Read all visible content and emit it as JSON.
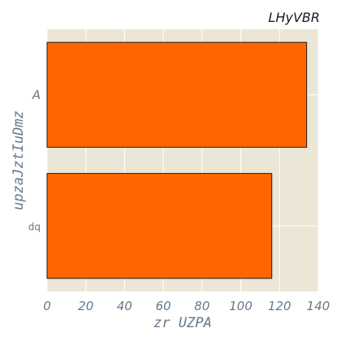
{
  "chart_data": {
    "type": "bar",
    "orientation": "horizontal",
    "title": "LHyVBR",
    "xlabel": "zr UZPA",
    "ylabel": "upzaJztIuDmz",
    "categories": [
      "A",
      "dq"
    ],
    "values": [
      134,
      116
    ],
    "xlim": [
      0,
      140
    ],
    "xticks": [
      0,
      20,
      40,
      60,
      80,
      100,
      120,
      140
    ],
    "grid": true,
    "colors": {
      "bar": "#ff6600",
      "bar_edge": "#1a1a1a",
      "plot_background": "#ece6d6",
      "grid": "#ffffff",
      "text": "#66788a"
    }
  }
}
